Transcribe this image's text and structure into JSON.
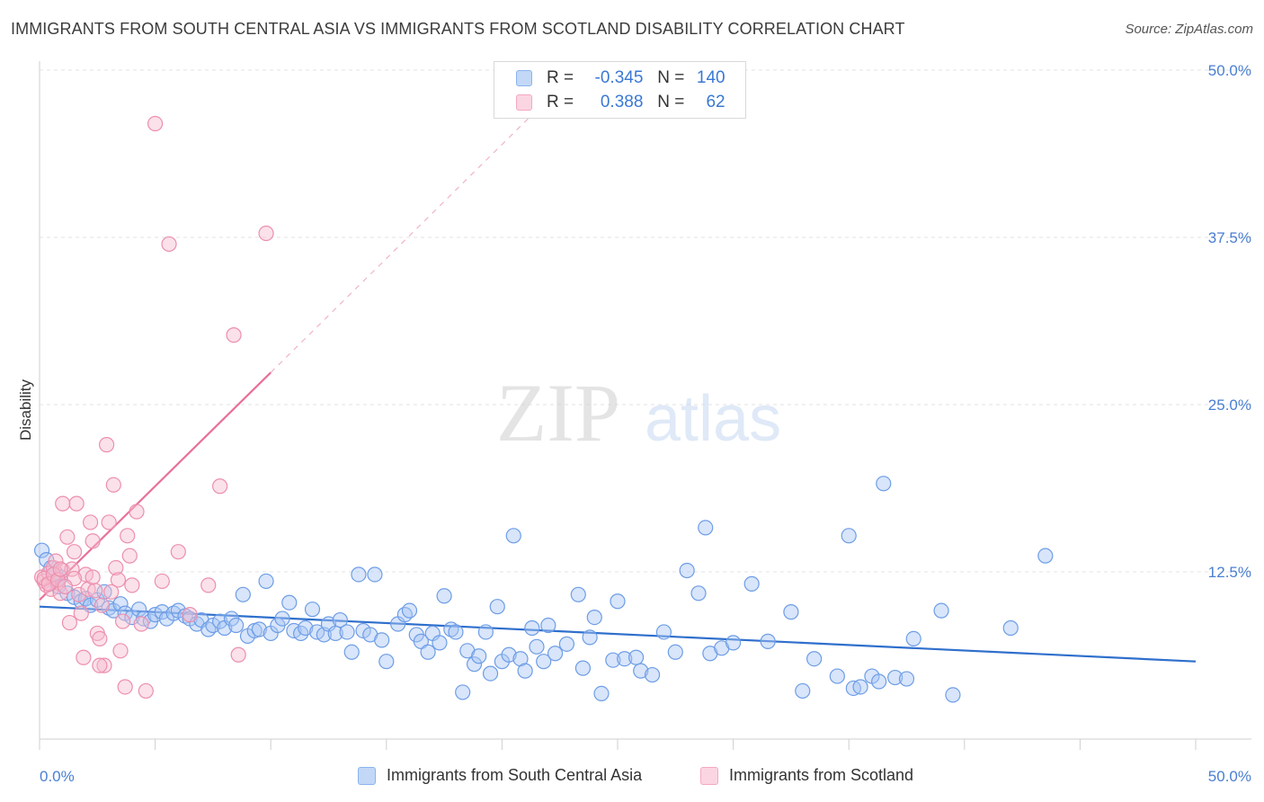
{
  "title": "IMMIGRANTS FROM SOUTH CENTRAL ASIA VS IMMIGRANTS FROM SCOTLAND DISABILITY CORRELATION CHART",
  "source": "Source: ZipAtlas.com",
  "watermark": {
    "zip": "ZIP",
    "atlas": "atlas"
  },
  "legend": {
    "rows": [
      {
        "r_label": "R =",
        "r_value": "-0.345",
        "n_label": "N =",
        "n_value": "140",
        "color": "#8ab4ef"
      },
      {
        "r_label": "R =",
        "r_value": "0.388",
        "n_label": "N =",
        "n_value": "62",
        "color": "#f4a9c1"
      }
    ]
  },
  "bottom_legend": {
    "series1": "Immigrants from South Central Asia",
    "series2": "Immigrants from Scotland"
  },
  "colors": {
    "blue_fill": "#a9c6f3",
    "blue_stroke": "#6d9de6",
    "blue_line": "#2f6fcc",
    "pink_fill": "#f7bccf",
    "pink_stroke": "#ec8fae",
    "pink_line": "#e8709a",
    "axis_label": "#4a7fd1",
    "grid": "#e3e3e3"
  },
  "chart_data": {
    "type": "scatter",
    "title": "IMMIGRANTS FROM SOUTH CENTRAL ASIA VS IMMIGRANTS FROM SCOTLAND DISABILITY CORRELATION CHART",
    "xlabel": "",
    "ylabel": "Disability",
    "xlim": [
      0,
      50
    ],
    "ylim": [
      0,
      50
    ],
    "x_tick_labels": [
      "0.0%",
      "50.0%"
    ],
    "y_tick_labels": [
      "12.5%",
      "25.0%",
      "37.5%",
      "50.0%"
    ],
    "y_ticks": [
      12.5,
      25.0,
      37.5,
      50.0
    ],
    "grid": true,
    "legend_position": "top-center",
    "series": [
      {
        "name": "Immigrants from South Central Asia",
        "color": "#8ab4ef",
        "trend": {
          "x": [
            0.0,
            50.0
          ],
          "y": [
            9.9,
            5.8
          ],
          "style": "solid"
        },
        "points": [
          [
            0.1,
            14.1
          ],
          [
            0.3,
            13.4
          ],
          [
            0.5,
            12.8
          ],
          [
            0.7,
            12.4
          ],
          [
            0.9,
            12.1
          ],
          [
            0.8,
            11.4
          ],
          [
            1.2,
            10.9
          ],
          [
            1.5,
            10.6
          ],
          [
            1.8,
            10.3
          ],
          [
            2.0,
            10.5
          ],
          [
            2.2,
            10.0
          ],
          [
            2.5,
            10.4
          ],
          [
            2.8,
            11.0
          ],
          [
            3.0,
            9.8
          ],
          [
            3.2,
            9.6
          ],
          [
            3.5,
            10.1
          ],
          [
            3.7,
            9.4
          ],
          [
            4.0,
            9.1
          ],
          [
            4.3,
            9.7
          ],
          [
            4.5,
            9.0
          ],
          [
            4.8,
            8.8
          ],
          [
            5.0,
            9.3
          ],
          [
            5.3,
            9.5
          ],
          [
            5.5,
            9.0
          ],
          [
            5.8,
            9.4
          ],
          [
            6.0,
            9.6
          ],
          [
            6.3,
            9.2
          ],
          [
            6.5,
            9.0
          ],
          [
            6.8,
            8.6
          ],
          [
            7.0,
            8.9
          ],
          [
            7.3,
            8.2
          ],
          [
            7.5,
            8.5
          ],
          [
            7.8,
            8.8
          ],
          [
            8.0,
            8.3
          ],
          [
            8.3,
            9.0
          ],
          [
            8.5,
            8.5
          ],
          [
            8.8,
            10.8
          ],
          [
            9.0,
            7.7
          ],
          [
            9.3,
            8.1
          ],
          [
            9.5,
            8.2
          ],
          [
            9.8,
            11.8
          ],
          [
            10.0,
            7.9
          ],
          [
            10.3,
            8.5
          ],
          [
            10.5,
            9.0
          ],
          [
            10.8,
            10.2
          ],
          [
            11.0,
            8.1
          ],
          [
            11.3,
            7.9
          ],
          [
            11.5,
            8.3
          ],
          [
            11.8,
            9.7
          ],
          [
            12.0,
            8.0
          ],
          [
            12.3,
            7.8
          ],
          [
            12.5,
            8.6
          ],
          [
            12.8,
            7.9
          ],
          [
            13.0,
            8.9
          ],
          [
            13.3,
            8.0
          ],
          [
            13.5,
            6.5
          ],
          [
            13.8,
            12.3
          ],
          [
            14.0,
            8.1
          ],
          [
            14.3,
            7.8
          ],
          [
            14.5,
            12.3
          ],
          [
            14.8,
            7.4
          ],
          [
            15.0,
            5.8
          ],
          [
            15.5,
            8.6
          ],
          [
            15.8,
            9.3
          ],
          [
            16.0,
            9.6
          ],
          [
            16.3,
            7.8
          ],
          [
            16.5,
            7.3
          ],
          [
            16.8,
            6.5
          ],
          [
            17.0,
            7.9
          ],
          [
            17.3,
            7.2
          ],
          [
            17.5,
            10.7
          ],
          [
            17.8,
            8.2
          ],
          [
            18.0,
            8.0
          ],
          [
            18.3,
            3.5
          ],
          [
            18.5,
            6.6
          ],
          [
            18.8,
            5.6
          ],
          [
            19.0,
            6.2
          ],
          [
            19.3,
            8.0
          ],
          [
            19.5,
            4.9
          ],
          [
            19.8,
            9.9
          ],
          [
            20.0,
            5.8
          ],
          [
            20.3,
            6.3
          ],
          [
            20.5,
            15.2
          ],
          [
            20.8,
            6.0
          ],
          [
            21.0,
            5.1
          ],
          [
            21.3,
            8.3
          ],
          [
            21.5,
            6.9
          ],
          [
            21.8,
            5.8
          ],
          [
            22.0,
            8.5
          ],
          [
            22.3,
            6.4
          ],
          [
            22.8,
            7.1
          ],
          [
            23.3,
            10.8
          ],
          [
            23.5,
            5.3
          ],
          [
            23.8,
            7.6
          ],
          [
            24.0,
            9.1
          ],
          [
            24.3,
            3.4
          ],
          [
            24.8,
            5.9
          ],
          [
            25.0,
            10.3
          ],
          [
            25.3,
            6.0
          ],
          [
            25.8,
            6.1
          ],
          [
            26.0,
            5.1
          ],
          [
            26.5,
            4.8
          ],
          [
            27.0,
            8.0
          ],
          [
            27.5,
            6.5
          ],
          [
            28.0,
            12.6
          ],
          [
            28.5,
            10.9
          ],
          [
            28.8,
            15.8
          ],
          [
            29.0,
            6.4
          ],
          [
            29.5,
            6.8
          ],
          [
            30.0,
            7.2
          ],
          [
            30.8,
            11.6
          ],
          [
            31.5,
            7.3
          ],
          [
            32.5,
            9.5
          ],
          [
            33.0,
            3.6
          ],
          [
            33.5,
            6.0
          ],
          [
            34.5,
            4.7
          ],
          [
            35.0,
            15.2
          ],
          [
            35.2,
            3.8
          ],
          [
            35.5,
            3.9
          ],
          [
            36.0,
            4.7
          ],
          [
            36.3,
            4.3
          ],
          [
            36.5,
            19.1
          ],
          [
            37.0,
            4.6
          ],
          [
            37.5,
            4.5
          ],
          [
            37.8,
            7.5
          ],
          [
            39.0,
            9.6
          ],
          [
            39.5,
            3.3
          ],
          [
            42.0,
            8.3
          ],
          [
            43.5,
            13.7
          ]
        ]
      },
      {
        "name": "Immigrants from Scotland",
        "color": "#f4a9c1",
        "trend": {
          "x": [
            0.0,
            10.0
          ],
          "y": [
            10.4,
            27.4
          ],
          "style": "solid",
          "extended": {
            "x": [
              10.0,
              21.5
            ],
            "y": [
              27.4,
              47.0
            ],
            "style": "dashed"
          }
        },
        "points": [
          [
            0.1,
            12.1
          ],
          [
            0.2,
            11.8
          ],
          [
            0.3,
            11.5
          ],
          [
            0.4,
            12.4
          ],
          [
            0.5,
            11.2
          ],
          [
            0.6,
            12.8
          ],
          [
            0.7,
            13.3
          ],
          [
            0.8,
            11.7
          ],
          [
            0.9,
            10.9
          ],
          [
            1.0,
            12.6
          ],
          [
            0.2,
            12.0
          ],
          [
            0.4,
            11.6
          ],
          [
            0.6,
            12.3
          ],
          [
            0.8,
            11.9
          ],
          [
            1.0,
            17.6
          ],
          [
            1.2,
            15.1
          ],
          [
            1.3,
            8.7
          ],
          [
            1.4,
            12.7
          ],
          [
            1.5,
            14.0
          ],
          [
            1.6,
            17.6
          ],
          [
            1.7,
            10.8
          ],
          [
            1.8,
            9.4
          ],
          [
            1.9,
            6.1
          ],
          [
            2.0,
            12.3
          ],
          [
            2.1,
            11.2
          ],
          [
            2.2,
            16.2
          ],
          [
            2.3,
            14.8
          ],
          [
            2.4,
            11.1
          ],
          [
            2.5,
            7.9
          ],
          [
            2.6,
            7.5
          ],
          [
            2.7,
            10.0
          ],
          [
            2.8,
            5.5
          ],
          [
            2.9,
            22.0
          ],
          [
            3.0,
            16.2
          ],
          [
            3.2,
            19.0
          ],
          [
            3.3,
            12.8
          ],
          [
            3.4,
            11.9
          ],
          [
            3.5,
            6.6
          ],
          [
            3.6,
            8.8
          ],
          [
            3.7,
            3.9
          ],
          [
            3.8,
            15.2
          ],
          [
            3.9,
            13.7
          ],
          [
            4.0,
            11.5
          ],
          [
            4.2,
            17.0
          ],
          [
            4.4,
            8.6
          ],
          [
            4.6,
            3.6
          ],
          [
            5.0,
            46.0
          ],
          [
            5.3,
            11.8
          ],
          [
            5.6,
            37.0
          ],
          [
            6.0,
            14.0
          ],
          [
            6.5,
            9.3
          ],
          [
            7.3,
            11.5
          ],
          [
            7.8,
            18.9
          ],
          [
            8.4,
            30.2
          ],
          [
            8.6,
            6.3
          ],
          [
            9.8,
            37.8
          ],
          [
            1.5,
            12.0
          ],
          [
            2.3,
            12.1
          ],
          [
            1.1,
            11.4
          ],
          [
            0.9,
            12.7
          ],
          [
            2.6,
            5.5
          ],
          [
            3.1,
            11.0
          ]
        ]
      }
    ]
  }
}
